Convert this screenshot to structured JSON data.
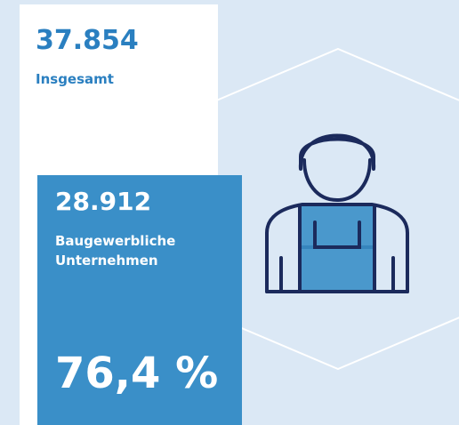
{
  "total": {
    "value": "37.854",
    "label": "Insgesamt"
  },
  "segment": {
    "value": "28.912",
    "label_lines": [
      "Baugewerbliche",
      "Unternehmen"
    ],
    "share": "76,4 %"
  }
}
